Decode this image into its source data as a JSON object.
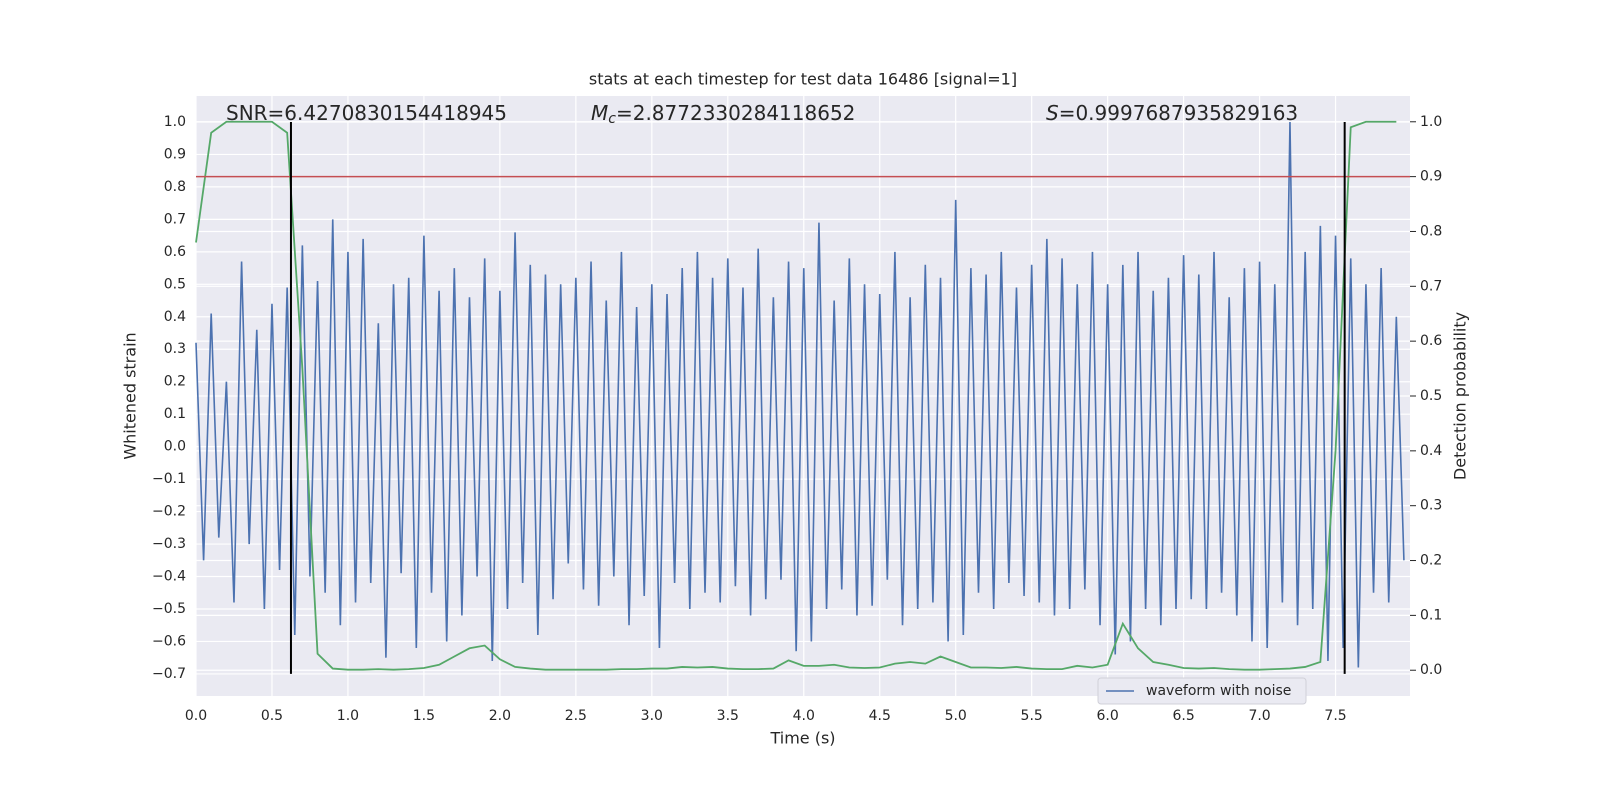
{
  "chart_data": {
    "type": "line",
    "title": "stats at each timestep for test data 16486 [signal=1]",
    "xlabel": "Time (s)",
    "ylabel": "Whitened strain",
    "y2label": "Detection probability",
    "annotations": [
      {
        "italic": "",
        "sub": "",
        "text": "SNR=6.4270830154418945"
      },
      {
        "italic": "M",
        "sub": "c",
        "text": "=2.8772330284118652"
      },
      {
        "italic": "S",
        "sub": "",
        "text": "=0.9997687935829163"
      }
    ],
    "xlim": [
      0,
      7.99
    ],
    "ylim": [
      -0.768,
      1.08
    ],
    "y2lim": [
      -0.047,
      1.047
    ],
    "xticks": [
      {
        "value": 0,
        "label": "0.0"
      },
      {
        "value": 0.5,
        "label": "0.5"
      },
      {
        "value": 1,
        "label": "1.0"
      },
      {
        "value": 1.5,
        "label": "1.5"
      },
      {
        "value": 2,
        "label": "2.0"
      },
      {
        "value": 2.5,
        "label": "2.5"
      },
      {
        "value": 3,
        "label": "3.0"
      },
      {
        "value": 3.5,
        "label": "3.5"
      },
      {
        "value": 4,
        "label": "4.0"
      },
      {
        "value": 4.5,
        "label": "4.5"
      },
      {
        "value": 5,
        "label": "5.0"
      },
      {
        "value": 5.5,
        "label": "5.5"
      },
      {
        "value": 6,
        "label": "6.0"
      },
      {
        "value": 6.5,
        "label": "6.5"
      },
      {
        "value": 7,
        "label": "7.0"
      },
      {
        "value": 7.5,
        "label": "7.5"
      }
    ],
    "yticks": [
      {
        "value": -0.7,
        "label": "−0.7"
      },
      {
        "value": -0.6,
        "label": "−0.6"
      },
      {
        "value": -0.5,
        "label": "−0.5"
      },
      {
        "value": -0.4,
        "label": "−0.4"
      },
      {
        "value": -0.3,
        "label": "−0.3"
      },
      {
        "value": -0.2,
        "label": "−0.2"
      },
      {
        "value": -0.1,
        "label": "−0.1"
      },
      {
        "value": 0,
        "label": "0.0"
      },
      {
        "value": 0.1,
        "label": "0.1"
      },
      {
        "value": 0.2,
        "label": "0.2"
      },
      {
        "value": 0.3,
        "label": "0.3"
      },
      {
        "value": 0.4,
        "label": "0.4"
      },
      {
        "value": 0.5,
        "label": "0.5"
      },
      {
        "value": 0.6,
        "label": "0.6"
      },
      {
        "value": 0.7,
        "label": "0.7"
      },
      {
        "value": 0.8,
        "label": "0.8"
      },
      {
        "value": 0.9,
        "label": "0.9"
      },
      {
        "value": 1,
        "label": "1.0"
      }
    ],
    "y2ticks": [
      {
        "value": 0,
        "label": "0.0"
      },
      {
        "value": 0.1,
        "label": "0.1"
      },
      {
        "value": 0.2,
        "label": "0.2"
      },
      {
        "value": 0.3,
        "label": "0.3"
      },
      {
        "value": 0.4,
        "label": "0.4"
      },
      {
        "value": 0.5,
        "label": "0.5"
      },
      {
        "value": 0.6,
        "label": "0.6"
      },
      {
        "value": 0.7,
        "label": "0.7"
      },
      {
        "value": 0.8,
        "label": "0.8"
      },
      {
        "value": 0.9,
        "label": "0.9"
      },
      {
        "value": 1,
        "label": "1.0"
      }
    ],
    "grid": true,
    "legend": "lower right",
    "series": [
      {
        "name": "waveform with noise",
        "color": "#4c72b0",
        "x": [
          0,
          0.05,
          0.1,
          0.15,
          0.2,
          0.25,
          0.3,
          0.35,
          0.4,
          0.45,
          0.5,
          0.55,
          0.6,
          0.65,
          0.7,
          0.75,
          0.8,
          0.85,
          0.9,
          0.95,
          1,
          1.05,
          1.1,
          1.15,
          1.2,
          1.25,
          1.3,
          1.35,
          1.4,
          1.45,
          1.5,
          1.55,
          1.6,
          1.65,
          1.7,
          1.75,
          1.8,
          1.85,
          1.9,
          1.95,
          2,
          2.05,
          2.1,
          2.15,
          2.2,
          2.25,
          2.3,
          2.35,
          2.4,
          2.45,
          2.5,
          2.55,
          2.6,
          2.65,
          2.7,
          2.75,
          2.8,
          2.85,
          2.9,
          2.95,
          3,
          3.05,
          3.1,
          3.15,
          3.2,
          3.25,
          3.3,
          3.35,
          3.4,
          3.45,
          3.5,
          3.55,
          3.6,
          3.65,
          3.7,
          3.75,
          3.8,
          3.85,
          3.9,
          3.95,
          4,
          4.05,
          4.1,
          4.15,
          4.2,
          4.25,
          4.3,
          4.35,
          4.4,
          4.45,
          4.5,
          4.55,
          4.6,
          4.65,
          4.7,
          4.75,
          4.8,
          4.85,
          4.9,
          4.95,
          5,
          5.05,
          5.1,
          5.15,
          5.2,
          5.25,
          5.3,
          5.35,
          5.4,
          5.45,
          5.5,
          5.55,
          5.6,
          5.65,
          5.7,
          5.75,
          5.8,
          5.85,
          5.9,
          5.95,
          6,
          6.05,
          6.1,
          6.15,
          6.2,
          6.25,
          6.3,
          6.35,
          6.4,
          6.45,
          6.5,
          6.55,
          6.6,
          6.65,
          6.7,
          6.75,
          6.8,
          6.85,
          6.9,
          6.95,
          7,
          7.05,
          7.1,
          7.15,
          7.2,
          7.25,
          7.3,
          7.35,
          7.4,
          7.45,
          7.5,
          7.55,
          7.6,
          7.65,
          7.7,
          7.75,
          7.8,
          7.85,
          7.9,
          7.95
        ],
        "values": [
          0.32,
          -0.35,
          0.41,
          -0.28,
          0.2,
          -0.48,
          0.57,
          -0.3,
          0.36,
          -0.5,
          0.44,
          -0.38,
          0.49,
          -0.58,
          0.62,
          -0.4,
          0.51,
          -0.45,
          0.7,
          -0.55,
          0.6,
          -0.48,
          0.64,
          -0.42,
          0.38,
          -0.65,
          0.5,
          -0.39,
          0.52,
          -0.62,
          0.65,
          -0.45,
          0.48,
          -0.6,
          0.55,
          -0.52,
          0.46,
          -0.4,
          0.58,
          -0.66,
          0.48,
          -0.5,
          0.66,
          -0.42,
          0.56,
          -0.58,
          0.53,
          -0.47,
          0.5,
          -0.36,
          0.52,
          -0.44,
          0.57,
          -0.49,
          0.45,
          -0.4,
          0.6,
          -0.55,
          0.43,
          -0.46,
          0.5,
          -0.62,
          0.47,
          -0.42,
          0.55,
          -0.5,
          0.6,
          -0.45,
          0.52,
          -0.48,
          0.58,
          -0.43,
          0.49,
          -0.52,
          0.61,
          -0.47,
          0.46,
          -0.41,
          0.57,
          -0.63,
          0.55,
          -0.6,
          0.69,
          -0.5,
          0.45,
          -0.44,
          0.58,
          -0.52,
          0.5,
          -0.49,
          0.47,
          -0.41,
          0.6,
          -0.55,
          0.46,
          -0.5,
          0.56,
          -0.48,
          0.52,
          -0.6,
          0.76,
          -0.58,
          0.55,
          -0.45,
          0.53,
          -0.5,
          0.6,
          -0.42,
          0.49,
          -0.46,
          0.56,
          -0.48,
          0.64,
          -0.52,
          0.58,
          -0.5,
          0.5,
          -0.44,
          0.6,
          -0.55,
          0.5,
          -0.64,
          0.56,
          -0.6,
          0.6,
          -0.5,
          0.48,
          -0.55,
          0.52,
          -0.5,
          0.59,
          -0.47,
          0.53,
          -0.5,
          0.6,
          -0.45,
          0.46,
          -0.52,
          0.55,
          -0.6,
          0.57,
          -0.62,
          0.5,
          -0.48,
          1.0,
          -0.55,
          0.6,
          -0.5,
          0.68,
          -0.66,
          0.65,
          -0.62,
          0.58,
          -0.68,
          0.5,
          -0.45,
          0.55,
          -0.48,
          0.4,
          -0.35
        ]
      },
      {
        "color": "#55a868",
        "axis": "y2",
        "x": [
          0,
          0.1,
          0.2,
          0.3,
          0.4,
          0.5,
          0.6,
          0.7,
          0.8,
          0.9,
          1,
          1.1,
          1.2,
          1.3,
          1.4,
          1.5,
          1.6,
          1.7,
          1.8,
          1.9,
          2,
          2.1,
          2.2,
          2.3,
          2.4,
          2.5,
          2.6,
          2.7,
          2.8,
          2.9,
          3,
          3.1,
          3.2,
          3.3,
          3.4,
          3.5,
          3.6,
          3.7,
          3.8,
          3.9,
          4,
          4.1,
          4.2,
          4.3,
          4.4,
          4.5,
          4.6,
          4.7,
          4.8,
          4.9,
          5,
          5.1,
          5.2,
          5.3,
          5.4,
          5.5,
          5.6,
          5.7,
          5.8,
          5.9,
          6,
          6.1,
          6.2,
          6.3,
          6.4,
          6.5,
          6.6,
          6.7,
          6.8,
          6.9,
          7,
          7.1,
          7.2,
          7.3,
          7.4,
          7.5,
          7.6,
          7.7,
          7.8,
          7.9
        ],
        "values": [
          0.78,
          0.98,
          1.0,
          1.0,
          1.0,
          1.0,
          0.98,
          0.55,
          0.03,
          0.003,
          0.001,
          0.001,
          0.002,
          0.001,
          0.002,
          0.004,
          0.01,
          0.025,
          0.04,
          0.045,
          0.02,
          0.006,
          0.003,
          0.001,
          0.001,
          0.001,
          0.001,
          0.001,
          0.002,
          0.002,
          0.003,
          0.003,
          0.006,
          0.005,
          0.006,
          0.003,
          0.002,
          0.002,
          0.003,
          0.018,
          0.008,
          0.008,
          0.01,
          0.005,
          0.004,
          0.005,
          0.012,
          0.015,
          0.012,
          0.025,
          0.015,
          0.005,
          0.005,
          0.004,
          0.006,
          0.003,
          0.002,
          0.002,
          0.008,
          0.005,
          0.01,
          0.085,
          0.04,
          0.015,
          0.01,
          0.004,
          0.003,
          0.004,
          0.002,
          0.001,
          0.001,
          0.002,
          0.003,
          0.006,
          0.015,
          0.4,
          0.99,
          1.0,
          1.0,
          1.0
        ]
      }
    ],
    "hline": {
      "y": 0.9,
      "axis": "y2",
      "color": "#c44e52"
    },
    "vlines": {
      "x": [
        0.625,
        7.56
      ],
      "ymin": -0.7,
      "ymax": 1.0,
      "color": "#000000"
    }
  }
}
